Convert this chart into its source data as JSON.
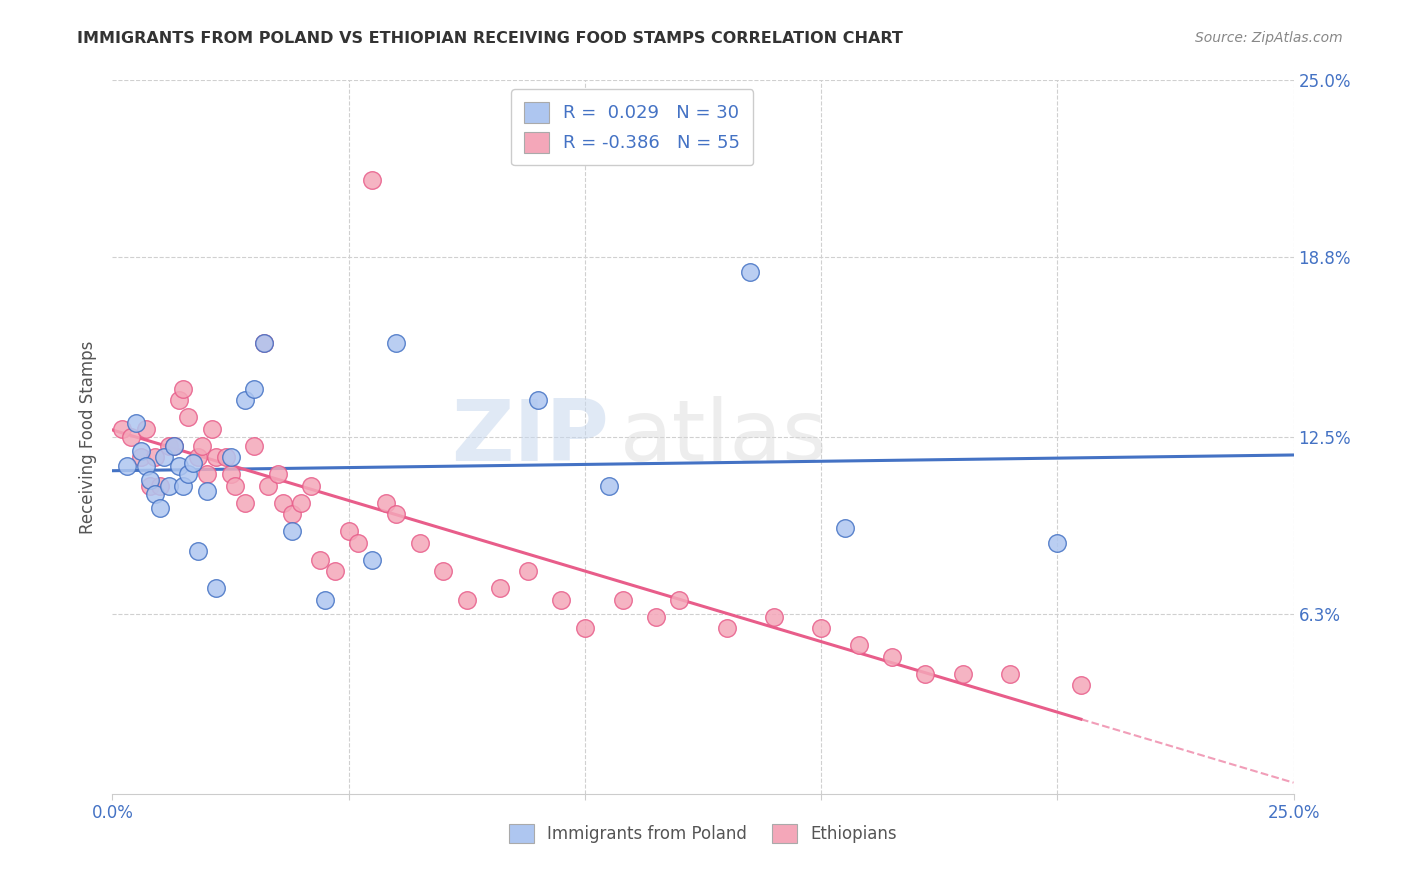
{
  "title": "IMMIGRANTS FROM POLAND VS ETHIOPIAN RECEIVING FOOD STAMPS CORRELATION CHART",
  "source": "Source: ZipAtlas.com",
  "ylabel": "Receiving Food Stamps",
  "xlim": [
    0.0,
    0.25
  ],
  "ylim": [
    0.0,
    0.25
  ],
  "ytick_labels_right": [
    "25.0%",
    "18.8%",
    "12.5%",
    "6.3%"
  ],
  "ytick_vals_right": [
    0.25,
    0.188,
    0.125,
    0.063
  ],
  "legend_r_poland": " 0.029",
  "legend_n_poland": "30",
  "legend_r_ethiopia": "-0.386",
  "legend_n_ethiopia": "55",
  "poland_color": "#aec6f0",
  "ethiopia_color": "#f4a7b9",
  "poland_line_color": "#4472c4",
  "ethiopia_line_color": "#e85d8a",
  "background_color": "#ffffff",
  "watermark_zip": "ZIP",
  "watermark_atlas": "atlas",
  "poland_scatter_x": [
    0.003,
    0.005,
    0.006,
    0.007,
    0.008,
    0.009,
    0.01,
    0.011,
    0.012,
    0.013,
    0.014,
    0.015,
    0.016,
    0.017,
    0.018,
    0.02,
    0.022,
    0.025,
    0.028,
    0.03,
    0.032,
    0.038,
    0.045,
    0.055,
    0.06,
    0.09,
    0.105,
    0.135,
    0.155,
    0.2
  ],
  "poland_scatter_y": [
    0.115,
    0.13,
    0.12,
    0.115,
    0.11,
    0.105,
    0.1,
    0.118,
    0.108,
    0.122,
    0.115,
    0.108,
    0.112,
    0.116,
    0.085,
    0.106,
    0.072,
    0.118,
    0.138,
    0.142,
    0.158,
    0.092,
    0.068,
    0.082,
    0.158,
    0.138,
    0.108,
    0.183,
    0.093,
    0.088
  ],
  "ethiopia_scatter_x": [
    0.002,
    0.004,
    0.006,
    0.007,
    0.008,
    0.009,
    0.01,
    0.012,
    0.013,
    0.014,
    0.015,
    0.016,
    0.018,
    0.019,
    0.02,
    0.021,
    0.022,
    0.024,
    0.025,
    0.026,
    0.028,
    0.03,
    0.032,
    0.033,
    0.035,
    0.036,
    0.038,
    0.04,
    0.042,
    0.044,
    0.047,
    0.05,
    0.052,
    0.055,
    0.058,
    0.06,
    0.065,
    0.07,
    0.075,
    0.082,
    0.088,
    0.095,
    0.1,
    0.108,
    0.115,
    0.12,
    0.13,
    0.14,
    0.15,
    0.158,
    0.165,
    0.172,
    0.18,
    0.19,
    0.205
  ],
  "ethiopia_scatter_y": [
    0.128,
    0.125,
    0.118,
    0.128,
    0.108,
    0.118,
    0.108,
    0.122,
    0.122,
    0.138,
    0.142,
    0.132,
    0.118,
    0.122,
    0.112,
    0.128,
    0.118,
    0.118,
    0.112,
    0.108,
    0.102,
    0.122,
    0.158,
    0.108,
    0.112,
    0.102,
    0.098,
    0.102,
    0.108,
    0.082,
    0.078,
    0.092,
    0.088,
    0.215,
    0.102,
    0.098,
    0.088,
    0.078,
    0.068,
    0.072,
    0.078,
    0.068,
    0.058,
    0.068,
    0.062,
    0.068,
    0.058,
    0.062,
    0.058,
    0.052,
    0.048,
    0.042,
    0.042,
    0.042,
    0.038
  ]
}
